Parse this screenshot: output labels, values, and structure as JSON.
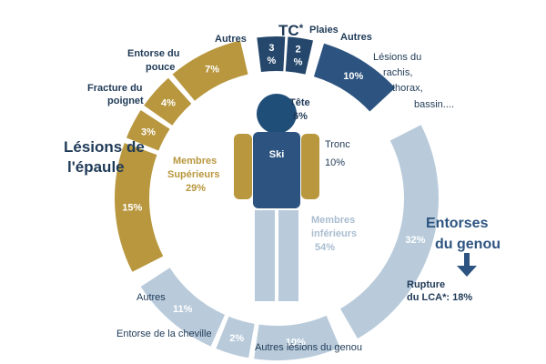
{
  "colors": {
    "gold": "#b8973e",
    "dark_blue": "#2d5480",
    "navy": "#24476b",
    "light_blue": "#b9cbdb",
    "head": "#1f4e79",
    "text": "#1f3a57"
  },
  "ring": {
    "upper": {
      "group_label_1": "Membres",
      "group_label_2": "Supérieurs",
      "group_value": "29%",
      "segments": [
        {
          "value": "15%",
          "label_1": "Lésions de",
          "label_2": "l'épaule"
        },
        {
          "value": "3%",
          "label_1": "Fracture du",
          "label_2": "poignet"
        },
        {
          "value": "4%",
          "label_1": "Entorse du",
          "label_2": "pouce"
        },
        {
          "value": "7%",
          "label_1": "Autres"
        }
      ]
    },
    "head_segments": {
      "tc_label": "TC",
      "tc_star": "*",
      "plaies_label": "Plaies",
      "autres_label": "Autres",
      "tc_value_1": "3",
      "tc_value_2": "%",
      "plaies_value_1": "2",
      "plaies_value_2": "%"
    },
    "trunk": {
      "value": "10%",
      "label_1": "Lésions du",
      "label_2": "rachis,",
      "label_3": "thorax,",
      "label_4": "bassin...."
    },
    "lower": {
      "group_label_1": "Membres",
      "group_label_2": "inférieurs",
      "group_value": "54%",
      "segments": [
        {
          "value": "32%",
          "label_1": "Entorses",
          "label_2": "du genou"
        },
        {
          "value": "10%",
          "label_1": "Autres lésions du genou"
        },
        {
          "value": "2%",
          "label_1": "Entorse de la cheville"
        },
        {
          "value": "11%",
          "label_1": "Autres"
        }
      ],
      "lca_label": "Rupture",
      "lca_label_2": "du LCA*: 18%"
    }
  },
  "figure": {
    "head_label": "Tête",
    "head_value": "6%",
    "torso_label": "Ski",
    "tronc_label": "Tronc",
    "tronc_value": "10%"
  }
}
